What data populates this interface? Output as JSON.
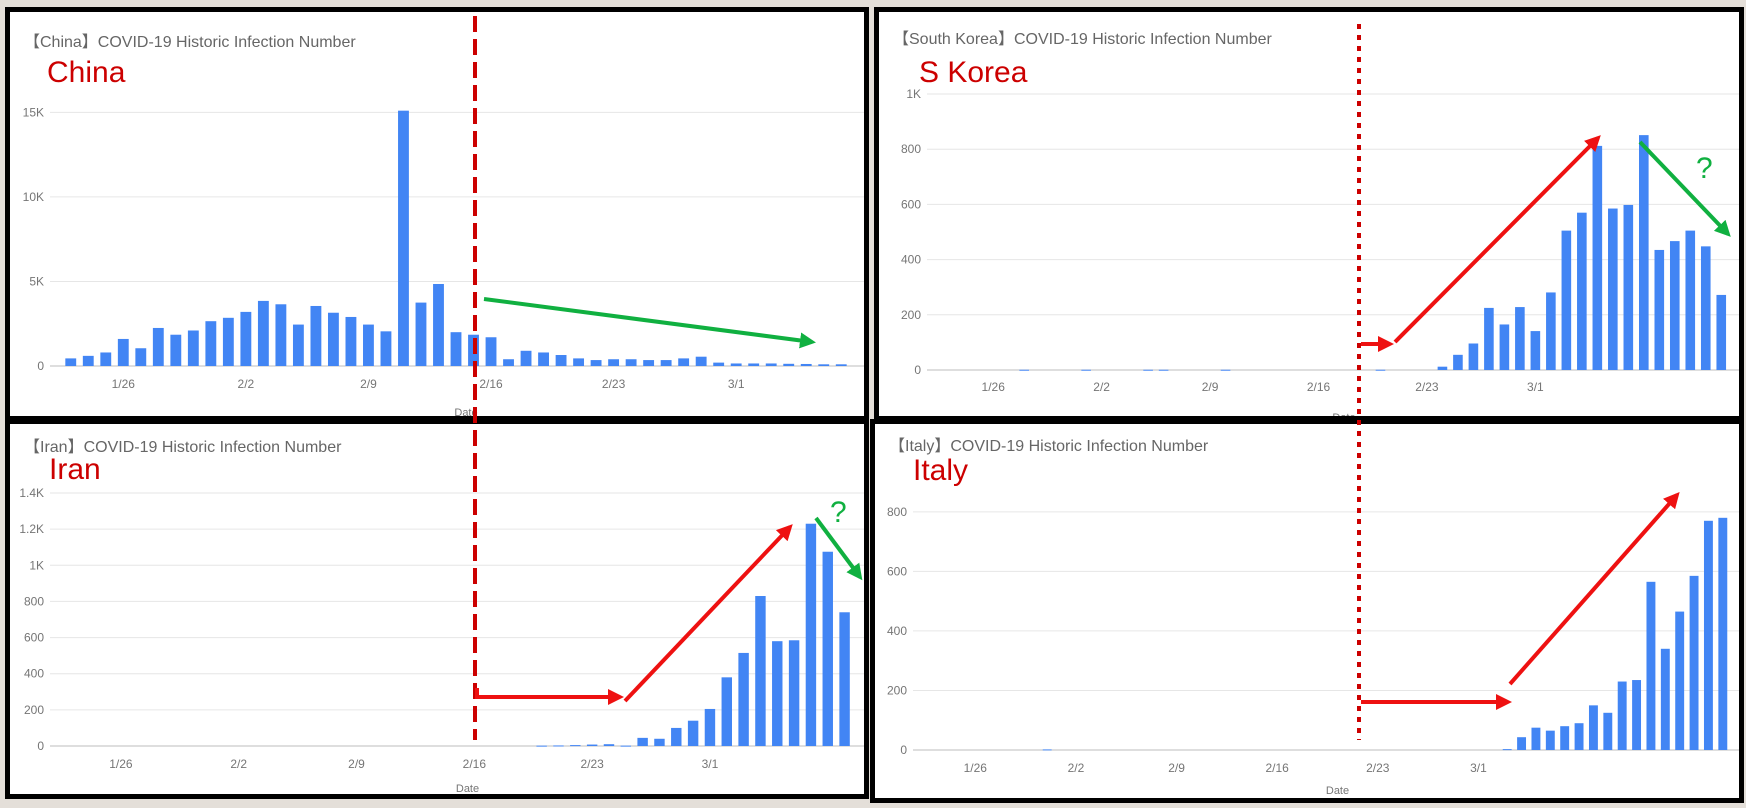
{
  "chart_data": [
    {
      "type": "bar",
      "title": "【China】COVID-19 Historic Infection Number",
      "overlay_label": "China",
      "xlabel": "Date",
      "x_ticks": [
        "1/26",
        "2/2",
        "2/9",
        "2/16",
        "2/23",
        "3/1"
      ],
      "first_date": "1/23",
      "y_ticks": [
        "0",
        "5K",
        "10K",
        "15K"
      ],
      "y_tick_values": [
        0,
        5000,
        10000,
        15000
      ],
      "ylim": [
        0,
        16500
      ],
      "values": [
        450,
        600,
        800,
        1600,
        1050,
        2250,
        1850,
        2100,
        2650,
        2850,
        3200,
        3850,
        3650,
        2450,
        3550,
        3150,
        2900,
        2450,
        2050,
        15100,
        3750,
        4850,
        2000,
        1850,
        1700,
        400,
        900,
        800,
        650,
        450,
        350,
        400,
        400,
        350,
        350,
        450,
        550,
        200,
        150,
        150,
        150,
        130,
        120,
        100,
        100
      ],
      "annotation": "declining trend after 2/16",
      "bar_color": "#4285f4"
    },
    {
      "type": "bar",
      "title": "【South Korea】COVID-19 Historic Infection Number",
      "overlay_label": "S Korea",
      "xlabel": "Date",
      "x_ticks": [
        "1/26",
        "2/2",
        "2/9",
        "2/16",
        "2/23",
        "3/1"
      ],
      "first_date": "1/23",
      "y_ticks": [
        "0",
        "200",
        "400",
        "600",
        "800",
        "1K"
      ],
      "y_tick_values": [
        0,
        200,
        400,
        600,
        800,
        1000
      ],
      "ylim": [
        0,
        1000
      ],
      "values": [
        0,
        0,
        0,
        0,
        0,
        1,
        0,
        0,
        0,
        1,
        0,
        0,
        0,
        1,
        1,
        0,
        0,
        0,
        1,
        0,
        0,
        0,
        0,
        0,
        0,
        0,
        0,
        0,
        1,
        0,
        0,
        0,
        12,
        55,
        96,
        225,
        165,
        228,
        141,
        281,
        505,
        570,
        812,
        585,
        598,
        851,
        435,
        467,
        505,
        448,
        272
      ],
      "annotation": "?",
      "bar_color": "#4285f4"
    },
    {
      "type": "bar",
      "title": "【Iran】COVID-19 Historic Infection Number",
      "overlay_label": "Iran",
      "xlabel": "Date",
      "x_ticks": [
        "1/26",
        "2/2",
        "2/9",
        "2/16",
        "2/23",
        "3/1"
      ],
      "first_date": "1/23",
      "y_ticks": [
        "0",
        "200",
        "400",
        "600",
        "800",
        "1K",
        "1.2K",
        "1.4K"
      ],
      "y_tick_values": [
        0,
        200,
        400,
        600,
        800,
        1000,
        1200,
        1400
      ],
      "ylim": [
        0,
        1400
      ],
      "values": [
        0,
        0,
        0,
        0,
        0,
        0,
        0,
        0,
        0,
        0,
        0,
        0,
        0,
        0,
        0,
        0,
        0,
        0,
        0,
        0,
        0,
        0,
        0,
        0,
        0,
        0,
        0,
        0,
        2,
        3,
        5,
        8,
        10,
        2,
        45,
        40,
        100,
        140,
        205,
        380,
        515,
        830,
        580,
        585,
        1230,
        1075,
        740
      ],
      "annotation": "?",
      "bar_color": "#4285f4"
    },
    {
      "type": "bar",
      "title": "【Italy】COVID-19 Historic Infection Number",
      "overlay_label": "Italy",
      "xlabel": "Date",
      "x_ticks": [
        "1/26",
        "2/2",
        "2/9",
        "2/16",
        "2/23",
        "3/1"
      ],
      "first_date": "1/23",
      "y_ticks": [
        "0",
        "200",
        "400",
        "600",
        "800"
      ],
      "y_tick_values": [
        0,
        200,
        400,
        600,
        800
      ],
      "ylim": [
        0,
        860
      ],
      "values": [
        0,
        0,
        0,
        0,
        0,
        0,
        0,
        0,
        2,
        0,
        0,
        0,
        0,
        0,
        0,
        0,
        0,
        0,
        0,
        0,
        0,
        0,
        0,
        0,
        0,
        0,
        0,
        0,
        0,
        0,
        0,
        0,
        0,
        0,
        0,
        0,
        0,
        0,
        0,
        0,
        3,
        43,
        75,
        65,
        80,
        90,
        150,
        125,
        230,
        235,
        565,
        340,
        465,
        585,
        770,
        780
      ],
      "annotation": "rising trend",
      "bar_color": "#4285f4"
    }
  ]
}
